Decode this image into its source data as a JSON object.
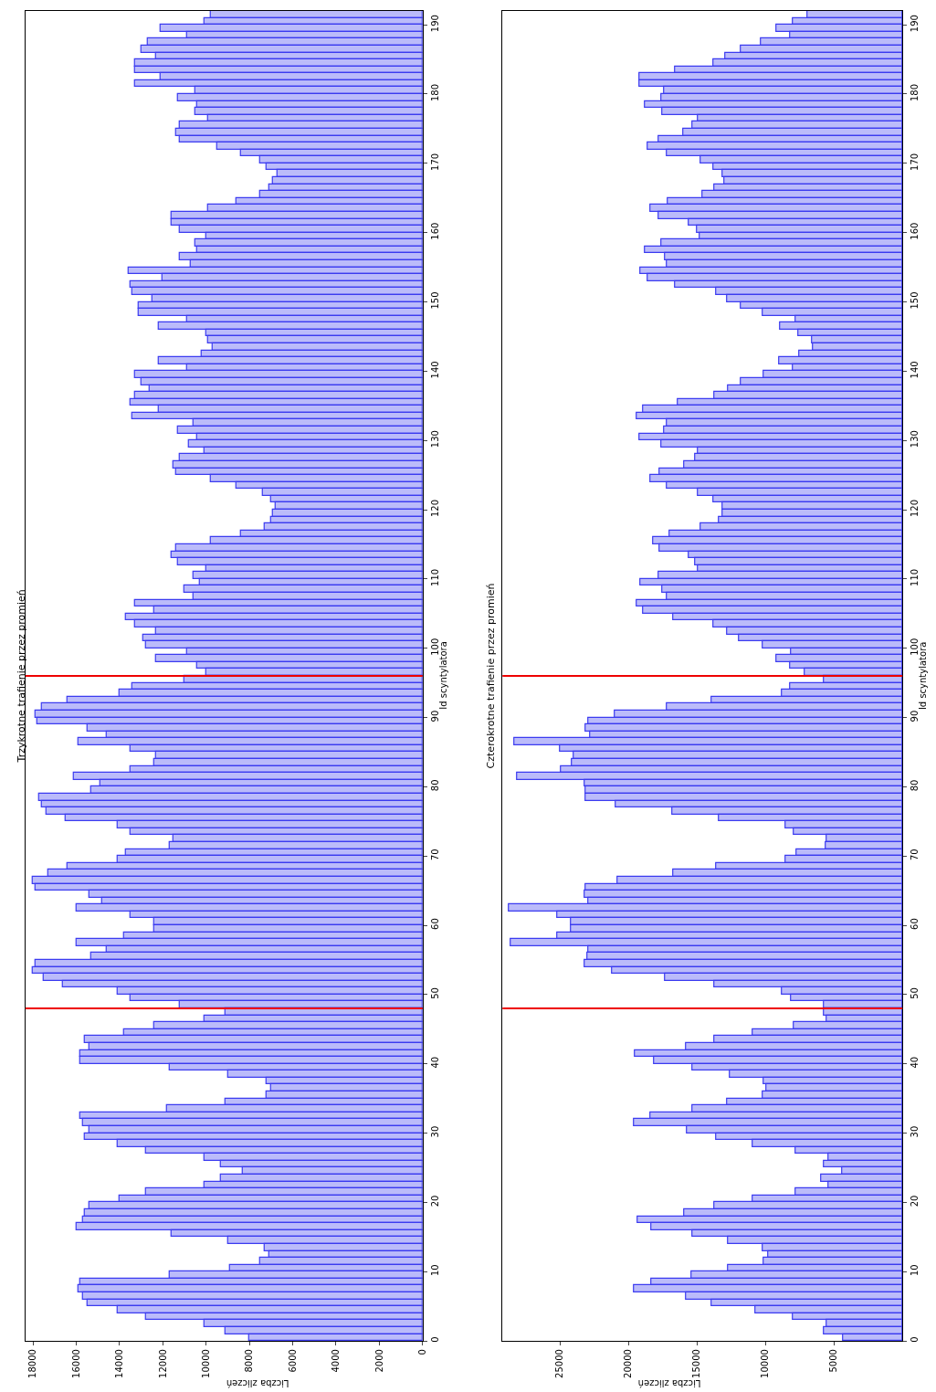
{
  "chart_data": [
    {
      "type": "histogram",
      "orientation": "horizontal",
      "title": "Trzykrotne trafienie przez promień",
      "ylabel": "Id scyntylatora",
      "xlabel": "Liczba zliczeń",
      "color": "#3b3bf0",
      "bins": [
        0,
        1,
        2,
        3,
        4,
        5,
        6,
        7,
        8,
        9,
        10,
        11,
        12,
        13,
        14,
        15,
        16,
        17,
        18,
        19,
        20,
        21,
        22,
        23,
        24,
        25,
        26,
        27,
        28,
        29,
        30,
        31,
        32,
        33,
        34,
        35,
        36,
        37,
        38,
        39,
        40,
        41,
        42,
        43,
        44,
        45,
        46,
        47,
        48,
        49,
        50,
        51,
        52,
        53,
        54,
        55,
        56,
        57,
        58,
        59,
        60,
        61,
        62,
        63,
        64,
        65,
        66,
        67,
        68,
        69,
        70,
        71,
        72,
        73,
        74,
        75,
        76,
        77,
        78,
        79,
        80,
        81,
        82,
        83,
        84,
        85,
        86,
        87,
        88,
        89,
        90,
        91,
        92,
        93,
        94,
        95,
        96,
        97,
        98,
        99,
        100,
        101,
        102,
        103,
        104,
        105,
        106,
        107,
        108,
        109,
        110,
        111,
        112,
        113,
        114,
        115,
        116,
        117,
        118,
        119,
        120,
        121,
        122,
        123,
        124,
        125,
        126,
        127,
        128,
        129,
        130,
        131,
        132,
        133,
        134,
        135,
        136,
        137,
        138,
        139,
        140,
        141,
        142,
        143,
        144,
        145,
        146,
        147,
        148,
        149,
        150,
        151,
        152,
        153,
        154,
        155,
        156,
        157,
        158,
        159,
        160,
        161,
        162,
        163,
        164,
        165,
        166,
        167,
        168,
        169,
        170,
        171,
        172,
        173,
        174,
        175,
        176,
        177,
        178,
        179,
        180,
        181,
        182,
        183,
        184,
        185,
        186,
        187,
        188,
        189,
        190,
        191,
        192
      ],
      "values": [
        8000,
        9100,
        10100,
        12800,
        14100,
        15500,
        15700,
        15900,
        15800,
        11700,
        8900,
        7500,
        7100,
        7300,
        9000,
        11600,
        16000,
        15700,
        15600,
        15400,
        14000,
        12800,
        10100,
        9300,
        8300,
        9300,
        10100,
        12800,
        14100,
        15600,
        15400,
        15700,
        15800,
        11800,
        9100,
        7200,
        7000,
        7200,
        9000,
        11700,
        15800,
        15800,
        15400,
        15600,
        13800,
        12400,
        10100,
        9100,
        11200,
        13500,
        14100,
        16600,
        17500,
        18000,
        17900,
        15300,
        14600,
        16000,
        13800,
        12400,
        12400,
        13500,
        16000,
        14800,
        15400,
        17900,
        18000,
        17300,
        16400,
        14100,
        13700,
        11700,
        11500,
        13500,
        14100,
        16500,
        17400,
        17600,
        17700,
        15300,
        14900,
        16100,
        13500,
        12400,
        12300,
        13500,
        15900,
        14600,
        15500,
        17800,
        17900,
        17600,
        16400,
        14000,
        13400,
        11000,
        10000,
        10400,
        12300,
        10900,
        12800,
        12900,
        12300,
        13300,
        13700,
        12400,
        13300,
        10600,
        11000,
        10300,
        10600,
        10000,
        11300,
        11600,
        11400,
        9800,
        8400,
        7300,
        7000,
        6900,
        6800,
        7000,
        7400,
        8600,
        9800,
        11400,
        11500,
        11200,
        10100,
        10800,
        10400,
        11300,
        10600,
        13400,
        12200,
        13500,
        13300,
        12600,
        13000,
        13300,
        10900,
        12200,
        10200,
        9700,
        9900,
        10000,
        12200,
        10900,
        13100,
        13100,
        12500,
        13400,
        13500,
        12000,
        13600,
        10700,
        11200,
        10400,
        10500,
        10000,
        11200,
        11600,
        11600,
        9900,
        8600,
        7500,
        7100,
        6900,
        6700,
        7200,
        7500,
        8400,
        9500,
        11200,
        11400,
        11200,
        9900,
        10500,
        10400,
        11300,
        10500,
        13300,
        12100,
        13300,
        13300,
        12300,
        13000,
        12700,
        10900,
        12100,
        10100,
        9800
      ],
      "ylim": [
        0,
        192
      ],
      "yticks": [
        0,
        10,
        20,
        30,
        40,
        50,
        60,
        70,
        80,
        90,
        100,
        110,
        120,
        130,
        140,
        150,
        160,
        170,
        180,
        190
      ],
      "xlim": [
        18350,
        0
      ],
      "xticks": [
        0,
        2000,
        4000,
        6000,
        8000,
        10000,
        12000,
        14000,
        16000,
        18000
      ],
      "ref_lines": [
        {
          "axis": "y",
          "value": 48,
          "color": "#ee0000"
        },
        {
          "axis": "y",
          "value": 96,
          "color": "#ee0000"
        }
      ]
    },
    {
      "type": "histogram",
      "orientation": "horizontal",
      "title": "Czterokrotne trafienie przez promień",
      "ylabel": "Id scyntylatora",
      "xlabel": "Liczba zliczeń",
      "color": "#3b3bf0",
      "bins": [
        0,
        1,
        2,
        3,
        4,
        5,
        6,
        7,
        8,
        9,
        10,
        11,
        12,
        13,
        14,
        15,
        16,
        17,
        18,
        19,
        20,
        21,
        22,
        23,
        24,
        25,
        26,
        27,
        28,
        29,
        30,
        31,
        32,
        33,
        34,
        35,
        36,
        37,
        38,
        39,
        40,
        41,
        42,
        43,
        44,
        45,
        46,
        47,
        48,
        49,
        50,
        51,
        52,
        53,
        54,
        55,
        56,
        57,
        58,
        59,
        60,
        61,
        62,
        63,
        64,
        65,
        66,
        67,
        68,
        69,
        70,
        71,
        72,
        73,
        74,
        75,
        76,
        77,
        78,
        79,
        80,
        81,
        82,
        83,
        84,
        85,
        86,
        87,
        88,
        89,
        90,
        91,
        92,
        93,
        94,
        95,
        96,
        97,
        98,
        99,
        100,
        101,
        102,
        103,
        104,
        105,
        106,
        107,
        108,
        109,
        110,
        111,
        112,
        113,
        114,
        115,
        116,
        117,
        118,
        119,
        120,
        121,
        122,
        123,
        124,
        125,
        126,
        127,
        128,
        129,
        130,
        131,
        132,
        133,
        134,
        135,
        136,
        137,
        138,
        139,
        140,
        141,
        142,
        143,
        144,
        145,
        146,
        147,
        148,
        149,
        150,
        151,
        152,
        153,
        154,
        155,
        156,
        157,
        158,
        159,
        160,
        161,
        162,
        163,
        164,
        165,
        166,
        167,
        168,
        169,
        170,
        171,
        172,
        173,
        174,
        175,
        176,
        177,
        178,
        179,
        180,
        181,
        182,
        183,
        184,
        185,
        186,
        187,
        188,
        189,
        190,
        191,
        192
      ],
      "values": [
        4300,
        5700,
        5500,
        8000,
        10700,
        13900,
        15800,
        19600,
        18300,
        15400,
        12700,
        10100,
        9800,
        10200,
        12700,
        15300,
        18300,
        19300,
        15900,
        13700,
        10900,
        7800,
        5400,
        5900,
        4400,
        5700,
        5400,
        7800,
        10900,
        13600,
        15700,
        19600,
        18400,
        15300,
        12800,
        10200,
        9900,
        10100,
        12600,
        15300,
        18100,
        19500,
        15800,
        13700,
        10900,
        7900,
        5500,
        5700,
        5700,
        8100,
        8800,
        13700,
        17300,
        21200,
        23200,
        23000,
        22900,
        28600,
        25200,
        24200,
        24200,
        25200,
        28700,
        22900,
        23200,
        23100,
        20800,
        16700,
        13600,
        8500,
        7700,
        5600,
        5500,
        7900,
        8500,
        13400,
        16800,
        20900,
        23100,
        23100,
        23200,
        28100,
        24900,
        24100,
        24000,
        25000,
        28300,
        22800,
        23100,
        22900,
        21000,
        17200,
        13900,
        8800,
        8200,
        5700,
        7100,
        8200,
        9200,
        8100,
        10200,
        11900,
        12800,
        13800,
        16700,
        18900,
        19400,
        17200,
        17500,
        19100,
        17800,
        14900,
        15100,
        15600,
        17700,
        18200,
        17000,
        14700,
        13400,
        13100,
        13100,
        13800,
        14900,
        17200,
        18400,
        17700,
        15900,
        15100,
        14900,
        17600,
        19200,
        17400,
        17200,
        19400,
        18900,
        16400,
        13700,
        12700,
        11800,
        10100,
        8000,
        9000,
        7500,
        6500,
        6600,
        7600,
        8900,
        7800,
        10200,
        11800,
        12800,
        13600,
        16600,
        18600,
        19100,
        17200,
        17300,
        18800,
        17600,
        14800,
        15000,
        15600,
        17800,
        18400,
        17100,
        14600,
        13700,
        13000,
        13100,
        13800,
        14700,
        17200,
        18600,
        17800,
        16000,
        15300,
        14900,
        17500,
        18800,
        17600,
        17400,
        19200,
        19200,
        16600,
        13800,
        12900,
        11800,
        10300,
        8200,
        9200,
        8000,
        6900
      ],
      "ylim": [
        0,
        192
      ],
      "yticks": [
        0,
        10,
        20,
        30,
        40,
        50,
        60,
        70,
        80,
        90,
        100,
        110,
        120,
        130,
        140,
        150,
        160,
        170,
        180,
        190
      ],
      "xlim": [
        29180,
        0
      ],
      "xticks": [
        5000,
        10000,
        15000,
        20000,
        25000
      ],
      "ref_lines": [
        {
          "axis": "y",
          "value": 48,
          "color": "#ee0000"
        },
        {
          "axis": "y",
          "value": 96,
          "color": "#ee0000"
        }
      ]
    }
  ]
}
